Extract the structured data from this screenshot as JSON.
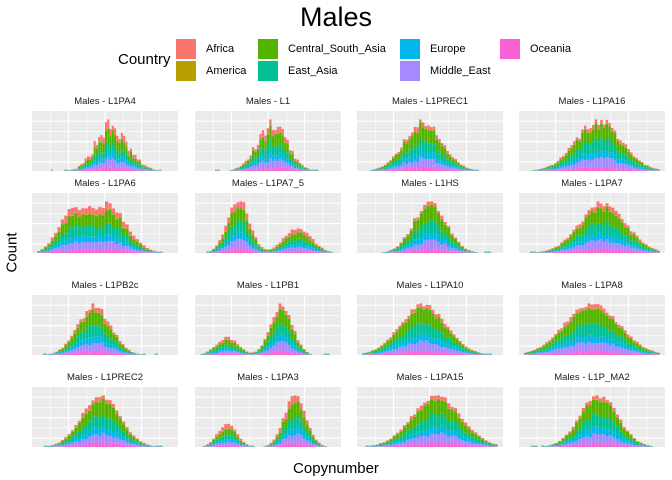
{
  "title": "Males",
  "legend": {
    "title": "Country",
    "items": [
      {
        "name": "Africa",
        "color": "#F8766D"
      },
      {
        "name": "America",
        "color": "#B79F00"
      },
      {
        "name": "Central_South_Asia",
        "color": "#53B400"
      },
      {
        "name": "East_Asia",
        "color": "#00C094"
      },
      {
        "name": "Europe",
        "color": "#00B6EB"
      },
      {
        "name": "Middle_East",
        "color": "#A58AFF"
      },
      {
        "name": "Oceania",
        "color": "#FB61D7"
      }
    ]
  },
  "axis": {
    "xlabel": "Copynumber",
    "ylabel": "Count"
  },
  "chart_data": {
    "type": "bar",
    "subtype": "stacked-histogram-facets",
    "title": "Males",
    "xlabel": "Copynumber",
    "ylabel": "Count",
    "stack_order": [
      "Oceania",
      "Middle_East",
      "Europe",
      "East_Asia",
      "Central_South_Asia",
      "America",
      "Africa"
    ],
    "grid": true,
    "legend_position": "top",
    "facets": [
      {
        "label": "Males - L1PA4",
        "bins": 60,
        "centers": [
          0.5,
          0.58
        ],
        "widths": [
          0.09,
          0.12
        ],
        "amps": [
          0.7,
          1.0
        ],
        "noise": 0.45,
        "africa": 1.0,
        "sparse": [
          0.05,
          0.95
        ]
      },
      {
        "label": "Males - L1",
        "bins": 55,
        "centers": [
          0.53
        ],
        "widths": [
          0.11
        ],
        "amps": [
          1.0
        ],
        "noise": 0.35,
        "africa": 0.8,
        "sparse": [
          0.05,
          0.9
        ]
      },
      {
        "label": "Males - L1PREC1",
        "bins": 50,
        "centers": [
          0.45
        ],
        "widths": [
          0.14
        ],
        "amps": [
          1.0
        ],
        "noise": 0.2,
        "africa": 0.6,
        "sparse": [
          0.02,
          0.92
        ]
      },
      {
        "label": "Males - L1PA16",
        "bins": 50,
        "centers": [
          0.55
        ],
        "widths": [
          0.17
        ],
        "amps": [
          1.0
        ],
        "noise": 0.2,
        "africa": 0.5,
        "sparse": [
          0.05,
          0.95
        ]
      },
      {
        "label": "Males - L1PA6",
        "bins": 40,
        "centers": [
          0.25,
          0.52
        ],
        "widths": [
          0.1,
          0.14
        ],
        "amps": [
          0.75,
          1.0
        ],
        "noise": 0.15,
        "africa": 1.0,
        "sparse": [
          0.03,
          0.95
        ]
      },
      {
        "label": "Males - L1PA7_5",
        "bins": 45,
        "centers": [
          0.28,
          0.72
        ],
        "widths": [
          0.08,
          0.1
        ],
        "amps": [
          1.0,
          0.45
        ],
        "noise": 0.18,
        "africa": 1.0,
        "sparse": [
          0.05,
          0.97
        ]
      },
      {
        "label": "Males - L1HS",
        "bins": 40,
        "centers": [
          0.5
        ],
        "widths": [
          0.12
        ],
        "amps": [
          1.0
        ],
        "noise": 0.15,
        "africa": 0.4,
        "sparse": [
          0.05,
          0.95
        ]
      },
      {
        "label": "Males - L1PA7",
        "bins": 45,
        "centers": [
          0.58
        ],
        "widths": [
          0.17
        ],
        "amps": [
          1.0
        ],
        "noise": 0.15,
        "africa": 0.6,
        "sparse": [
          0.05,
          0.95
        ]
      },
      {
        "label": "Males - L1PB2c",
        "bins": 45,
        "centers": [
          0.42
        ],
        "widths": [
          0.12
        ],
        "amps": [
          1.0
        ],
        "noise": 0.2,
        "africa": 0.6,
        "sparse": [
          0.05,
          0.95
        ]
      },
      {
        "label": "Males - L1PB1",
        "bins": 45,
        "centers": [
          0.2,
          0.6
        ],
        "widths": [
          0.08,
          0.08
        ],
        "amps": [
          0.35,
          1.0
        ],
        "noise": 0.15,
        "africa": 0.7,
        "sparse": [
          0.05,
          0.95
        ]
      },
      {
        "label": "Males - L1PA10",
        "bins": 45,
        "centers": [
          0.45
        ],
        "widths": [
          0.17
        ],
        "amps": [
          1.0
        ],
        "noise": 0.1,
        "africa": 0.5,
        "sparse": [
          0.03,
          0.95
        ]
      },
      {
        "label": "Males - L1PA8",
        "bins": 45,
        "centers": [
          0.5
        ],
        "widths": [
          0.2
        ],
        "amps": [
          1.0
        ],
        "noise": 0.1,
        "africa": 0.5,
        "sparse": [
          0.03,
          0.97
        ]
      },
      {
        "label": "Males - L1PREC2",
        "bins": 40,
        "centers": [
          0.47
        ],
        "widths": [
          0.14
        ],
        "amps": [
          1.0
        ],
        "noise": 0.1,
        "africa": 0.6,
        "sparse": [
          0.03,
          0.97
        ]
      },
      {
        "label": "Males - L1PA3",
        "bins": 45,
        "centers": [
          0.2,
          0.7
        ],
        "widths": [
          0.07,
          0.08
        ],
        "amps": [
          0.45,
          1.0
        ],
        "noise": 0.1,
        "africa": 1.0,
        "sparse": [
          0.05,
          0.95
        ]
      },
      {
        "label": "Males - L1PA15",
        "bins": 40,
        "centers": [
          0.55
        ],
        "widths": [
          0.18
        ],
        "amps": [
          1.0
        ],
        "noise": 0.1,
        "africa": 0.5,
        "sparse": [
          0.03,
          0.95
        ]
      },
      {
        "label": "Males - L1P_MA2",
        "bins": 40,
        "centers": [
          0.55
        ],
        "widths": [
          0.14
        ],
        "amps": [
          1.0
        ],
        "noise": 0.12,
        "africa": 0.5,
        "sparse": [
          0.03,
          0.95
        ]
      }
    ]
  }
}
